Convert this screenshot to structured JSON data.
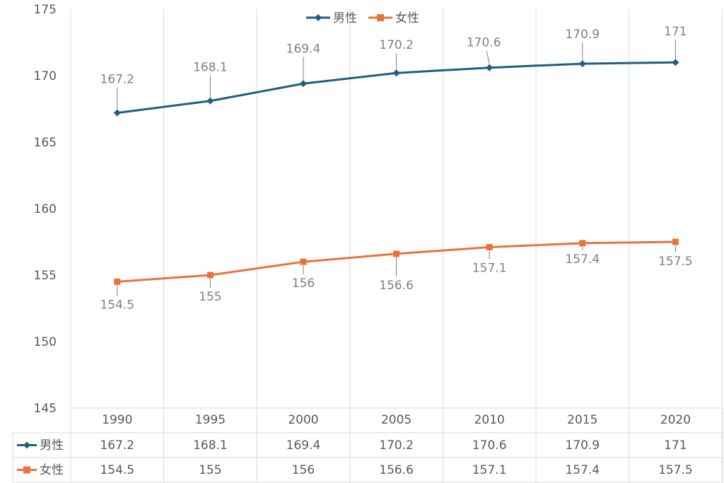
{
  "chart_data": {
    "type": "line",
    "categories": [
      "1990",
      "1995",
      "2000",
      "2005",
      "2010",
      "2015",
      "2020"
    ],
    "series": [
      {
        "name": "男性",
        "values": [
          167.2,
          168.1,
          169.4,
          170.2,
          170.6,
          170.9,
          171
        ],
        "color": "#1f5f7f",
        "marker": "diamond"
      },
      {
        "name": "女性",
        "values": [
          154.5,
          155,
          156,
          156.6,
          157.1,
          157.4,
          157.5
        ],
        "color": "#e8743b",
        "marker": "square"
      }
    ],
    "data_labels": {
      "男性": [
        "167.2",
        "168.1",
        "169.4",
        "170.2",
        "170.6",
        "170.9",
        "171"
      ],
      "女性": [
        "154.5",
        "155",
        "156",
        "156.6",
        "157.1",
        "157.4",
        "157.5"
      ]
    },
    "y_ticks": [
      "145",
      "150",
      "155",
      "160",
      "165",
      "170",
      "175"
    ],
    "ylim": [
      145,
      175
    ],
    "grid": true,
    "legend": "top-center",
    "data_table": true
  }
}
